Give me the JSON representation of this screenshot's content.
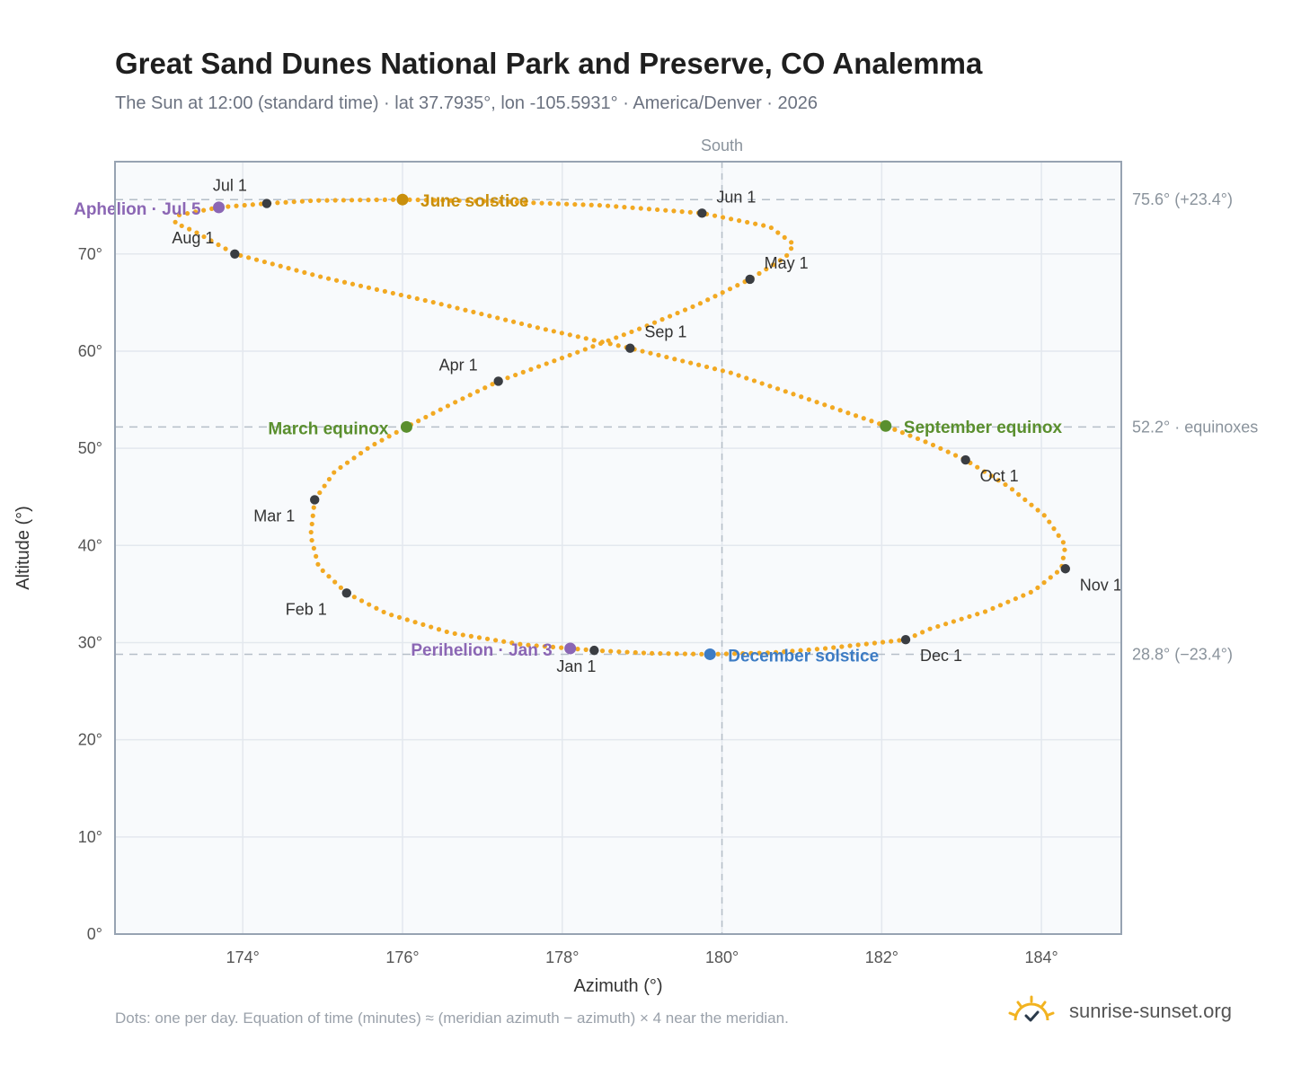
{
  "title": "Great Sand Dunes National Park and Preserve, CO Analemma",
  "subtitle": "The Sun at 12:00 (standard time) · lat 37.7935°, lon -105.5931° · America/Denver · 2026",
  "footnote": "Dots: one per day. Equation of time (minutes) ≈ (meridian azimuth − azimuth) × 4 near the meridian.",
  "brand": {
    "name": "sunrise-sunset.org",
    "icon": "sun-logo-icon"
  },
  "colors": {
    "path": "#f2a922",
    "month_marker": "#3a3d42",
    "june": "#c98f0c",
    "equinox": "#5a8f2e",
    "december": "#3d7cc4",
    "apsis": "#8b66b4",
    "grid": "#e3e8ee",
    "plot_bg": "#f8fafc"
  },
  "chart_data": {
    "type": "scatter",
    "xlabel": "Azimuth (°)",
    "ylabel": "Altitude (°)",
    "xlim": [
      172.4,
      185.0
    ],
    "ylim": [
      0,
      79.5
    ],
    "x_ticks": [
      174,
      176,
      178,
      180,
      182,
      184
    ],
    "x_tick_labels": [
      "174°",
      "176°",
      "178°",
      "180°",
      "182°",
      "184°"
    ],
    "y_ticks": [
      0,
      10,
      20,
      30,
      40,
      50,
      60,
      70
    ],
    "y_tick_labels": [
      "0°",
      "10°",
      "20°",
      "30°",
      "40°",
      "50°",
      "60°",
      "70°"
    ],
    "grid": true,
    "meridian": {
      "x": 180,
      "label": "South"
    },
    "reference_lines": [
      {
        "y": 75.6,
        "label": "75.6° (+23.4°)"
      },
      {
        "y": 52.2,
        "label": "52.2° · equinoxes"
      },
      {
        "y": 28.8,
        "label": "28.8° (−23.4°)"
      }
    ],
    "daily_series": {
      "description": "one dot per day",
      "path": [
        [
          178.4,
          29.2
        ],
        [
          177.5,
          29.8
        ],
        [
          176.6,
          31.0
        ],
        [
          175.8,
          33.0
        ],
        [
          175.3,
          35.1
        ],
        [
          174.95,
          37.8
        ],
        [
          174.85,
          41.0
        ],
        [
          174.9,
          44.7
        ],
        [
          175.15,
          47.6
        ],
        [
          175.6,
          50.2
        ],
        [
          176.05,
          52.2
        ],
        [
          176.6,
          54.5
        ],
        [
          177.2,
          56.9
        ],
        [
          178.1,
          59.6
        ],
        [
          179.0,
          62.4
        ],
        [
          179.7,
          64.8
        ],
        [
          180.35,
          67.4
        ],
        [
          180.8,
          69.7
        ],
        [
          180.9,
          71.0
        ],
        [
          180.6,
          72.8
        ],
        [
          179.75,
          74.2
        ],
        [
          178.5,
          75.0
        ],
        [
          177.2,
          75.4
        ],
        [
          176.0,
          75.6
        ],
        [
          174.9,
          75.5
        ],
        [
          174.3,
          75.2
        ],
        [
          173.7,
          74.8
        ],
        [
          173.2,
          74.0
        ],
        [
          173.15,
          73.2
        ],
        [
          173.4,
          72.3
        ],
        [
          173.9,
          70.0
        ],
        [
          175.0,
          67.6
        ],
        [
          176.4,
          65.0
        ],
        [
          177.7,
          62.4
        ],
        [
          178.85,
          60.3
        ],
        [
          180.1,
          57.8
        ],
        [
          181.1,
          55.0
        ],
        [
          182.05,
          52.3
        ],
        [
          182.6,
          50.5
        ],
        [
          183.05,
          48.8
        ],
        [
          183.6,
          46.0
        ],
        [
          184.05,
          43.0
        ],
        [
          184.3,
          40.0
        ],
        [
          184.25,
          37.6
        ],
        [
          183.9,
          35.3
        ],
        [
          183.3,
          33.2
        ],
        [
          182.6,
          31.4
        ],
        [
          182.3,
          30.3
        ],
        [
          181.3,
          29.4
        ],
        [
          180.6,
          28.95
        ],
        [
          179.85,
          28.8
        ],
        [
          179.1,
          28.9
        ],
        [
          178.4,
          29.2
        ]
      ]
    },
    "month_markers": [
      {
        "label": "Jan 1",
        "az": 178.4,
        "alt": 29.2
      },
      {
        "label": "Feb 1",
        "az": 175.3,
        "alt": 35.1
      },
      {
        "label": "Mar 1",
        "az": 174.9,
        "alt": 44.7
      },
      {
        "label": "Apr 1",
        "az": 177.2,
        "alt": 56.9
      },
      {
        "label": "May 1",
        "az": 180.35,
        "alt": 67.4
      },
      {
        "label": "Jun 1",
        "az": 179.75,
        "alt": 74.2
      },
      {
        "label": "Jul 1",
        "az": 174.3,
        "alt": 75.2
      },
      {
        "label": "Aug 1",
        "az": 173.9,
        "alt": 70.0
      },
      {
        "label": "Sep 1",
        "az": 178.85,
        "alt": 60.3
      },
      {
        "label": "Oct 1",
        "az": 183.05,
        "alt": 48.8
      },
      {
        "label": "Nov 1",
        "az": 184.3,
        "alt": 37.6
      },
      {
        "label": "Dec 1",
        "az": 182.3,
        "alt": 30.3
      }
    ],
    "events": [
      {
        "label": "June solstice",
        "az": 176.0,
        "alt": 75.6,
        "kind": "june"
      },
      {
        "label": "March equinox",
        "az": 176.05,
        "alt": 52.2,
        "kind": "equinox"
      },
      {
        "label": "September equinox",
        "az": 182.05,
        "alt": 52.3,
        "kind": "equinox"
      },
      {
        "label": "December solstice",
        "az": 179.85,
        "alt": 28.8,
        "kind": "december"
      },
      {
        "label": "Aphelion · Jul 5",
        "az": 173.7,
        "alt": 74.8,
        "kind": "apsis"
      },
      {
        "label": "Perihelion · Jan 3",
        "az": 178.1,
        "alt": 29.4,
        "kind": "apsis"
      }
    ]
  }
}
